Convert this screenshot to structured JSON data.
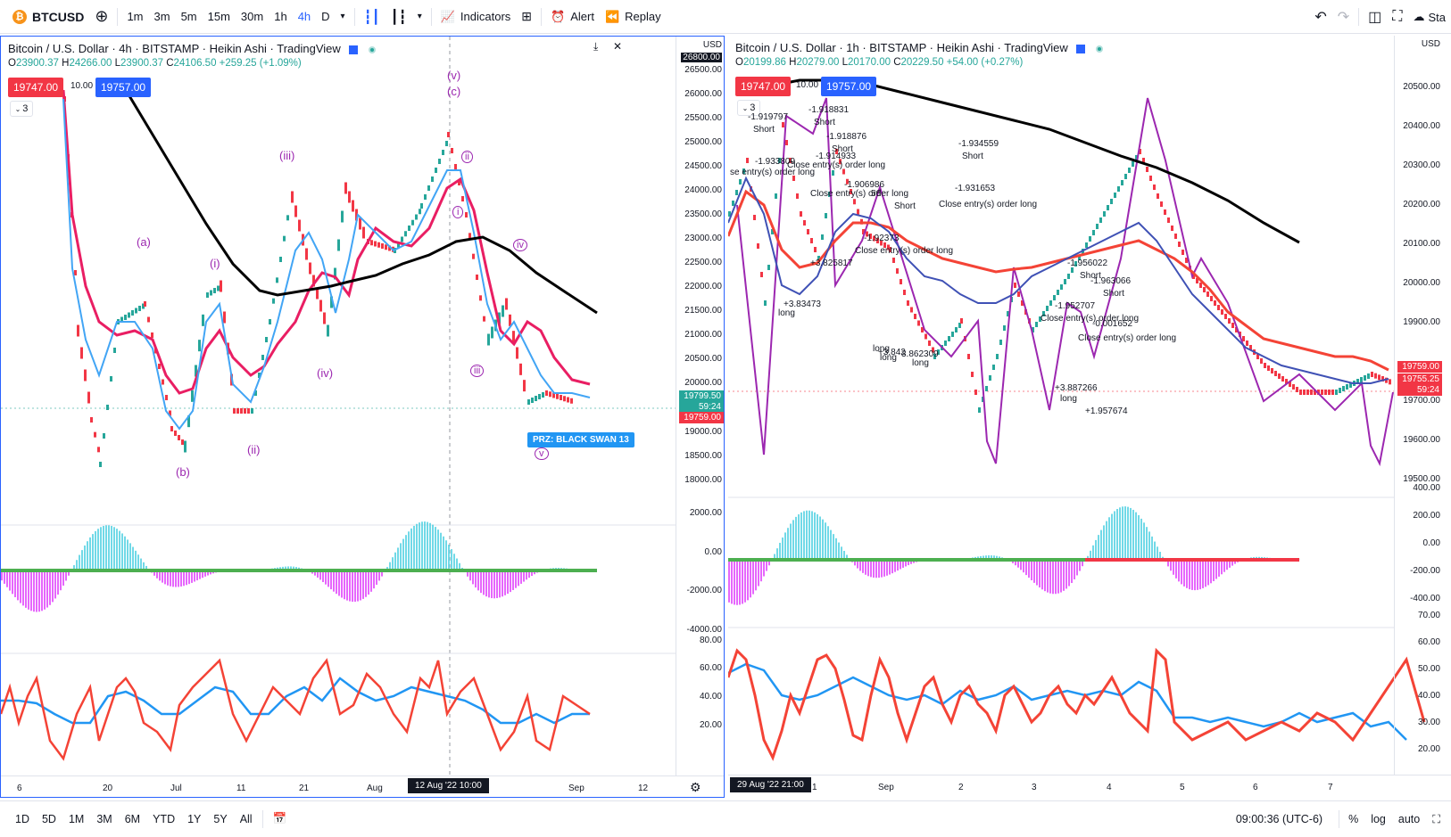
{
  "toolbar": {
    "symbol": "BTCUSD",
    "timeframes": [
      "1m",
      "3m",
      "5m",
      "15m",
      "30m",
      "1h",
      "4h",
      "D"
    ],
    "active_timeframe": "4h",
    "indicators_label": "Indicators",
    "alert_label": "Alert",
    "replay_label": "Replay",
    "right_cut_label": "Sta"
  },
  "left_chart": {
    "title": "Bitcoin / U.S. Dollar · 4h · BITSTAMP · Heikin Ashi · TradingView",
    "ohlc": {
      "o": "23900.37",
      "h": "24266.00",
      "l": "23900.37",
      "c": "24106.50",
      "chg": "+259.25 (+1.09%)"
    },
    "sell_price": "19747.00",
    "spread": "10.00",
    "buy_price": "19757.00",
    "indicator_count": "3",
    "currency": "USD",
    "y_labels": [
      "26500.00",
      "26000.00",
      "25500.00",
      "25000.00",
      "24500.00",
      "24000.00",
      "23500.00",
      "23000.00",
      "22500.00",
      "22000.00",
      "21500.00",
      "21000.00",
      "20500.00",
      "20000.00",
      "19000.00",
      "18500.00",
      "18000.00"
    ],
    "top_cut_label": "26800.00",
    "last_price": "19799.50",
    "countdown": "59:24",
    "bid_price": "19759.00",
    "osc_labels": [
      "2000.00",
      "0.00",
      "-2000.00",
      "-4000.00"
    ],
    "rsi_labels": [
      "80.00",
      "60.00",
      "40.00",
      "20.00"
    ],
    "x_labels": [
      "6",
      "20",
      "Jul",
      "11",
      "21",
      "Aug",
      "Sep",
      "12"
    ],
    "x_badge": "12 Aug '22  10:00",
    "waves": [
      "(v)",
      "(c)",
      "(iii)",
      "(a)",
      "(i)",
      "(b)",
      "(ii)",
      "(iv)",
      "ii",
      "i",
      "iv",
      "iii",
      "v"
    ],
    "prz_label": "PRZ: BLACK SWAN 13"
  },
  "right_chart": {
    "title": "Bitcoin / U.S. Dollar · 1h · BITSTAMP · Heikin Ashi · TradingView",
    "ohlc": {
      "o": "20199.86",
      "h": "20279.00",
      "l": "20170.00",
      "c": "20229.50",
      "chg": "+54.00 (+0.27%)"
    },
    "sell_price": "19747.00",
    "spread": "10.00",
    "buy_price": "19757.00",
    "indicator_count": "3",
    "currency": "USD",
    "y_labels": [
      "20500.00",
      "20400.00",
      "20300.00",
      "20200.00",
      "20100.00",
      "20000.00",
      "19900.00",
      "19700.00",
      "19600.00",
      "19500.00"
    ],
    "bid_price": "19759.00",
    "last_price": "19755.25",
    "countdown": "59:24",
    "osc_labels": [
      "400.00",
      "200.00",
      "0.00",
      "-200.00",
      "-400.00"
    ],
    "rsi_labels": [
      "70.00",
      "60.00",
      "50.00",
      "40.00",
      "30.00",
      "20.00"
    ],
    "x_labels": [
      "1",
      "Sep",
      "2",
      "3",
      "4",
      "5",
      "6",
      "7"
    ],
    "x_badge": "29 Aug '22  21:00",
    "annotations": [
      "-1.919797",
      "Short",
      "-1.918831",
      "Short",
      "-1.918876",
      "Short",
      "-1.914933",
      "-1.933809",
      "Close entry(s) order long",
      "se entry(s) order long",
      "-1.906986",
      "Close entry(s) order long",
      "56",
      "Short",
      "-1.934559",
      "Short",
      "-1.931653",
      "Close entry(s) order long",
      "-1.92373",
      "Close entry(s) order long",
      "+3.825817",
      "-1.956022",
      "Short",
      "-1.963066",
      "Short",
      "-1.952707",
      "Close entry(s) order long",
      "-0.001652",
      "Close entry(s) order long",
      "long",
      "+3.83473",
      "long",
      "+3.842",
      "long",
      "3.862309",
      "long",
      "+3.887266",
      "long",
      "+1.957674"
    ]
  },
  "bottombar": {
    "ranges": [
      "1D",
      "5D",
      "1M",
      "3M",
      "6M",
      "YTD",
      "1Y",
      "5Y",
      "All"
    ],
    "time": "09:00:36 (UTC-6)",
    "pct": "%",
    "log": "log",
    "auto": "auto"
  },
  "colors": {
    "accent": "#2962ff",
    "up": "#26a69a",
    "down": "#f23645",
    "wave": "#9c27b0"
  }
}
